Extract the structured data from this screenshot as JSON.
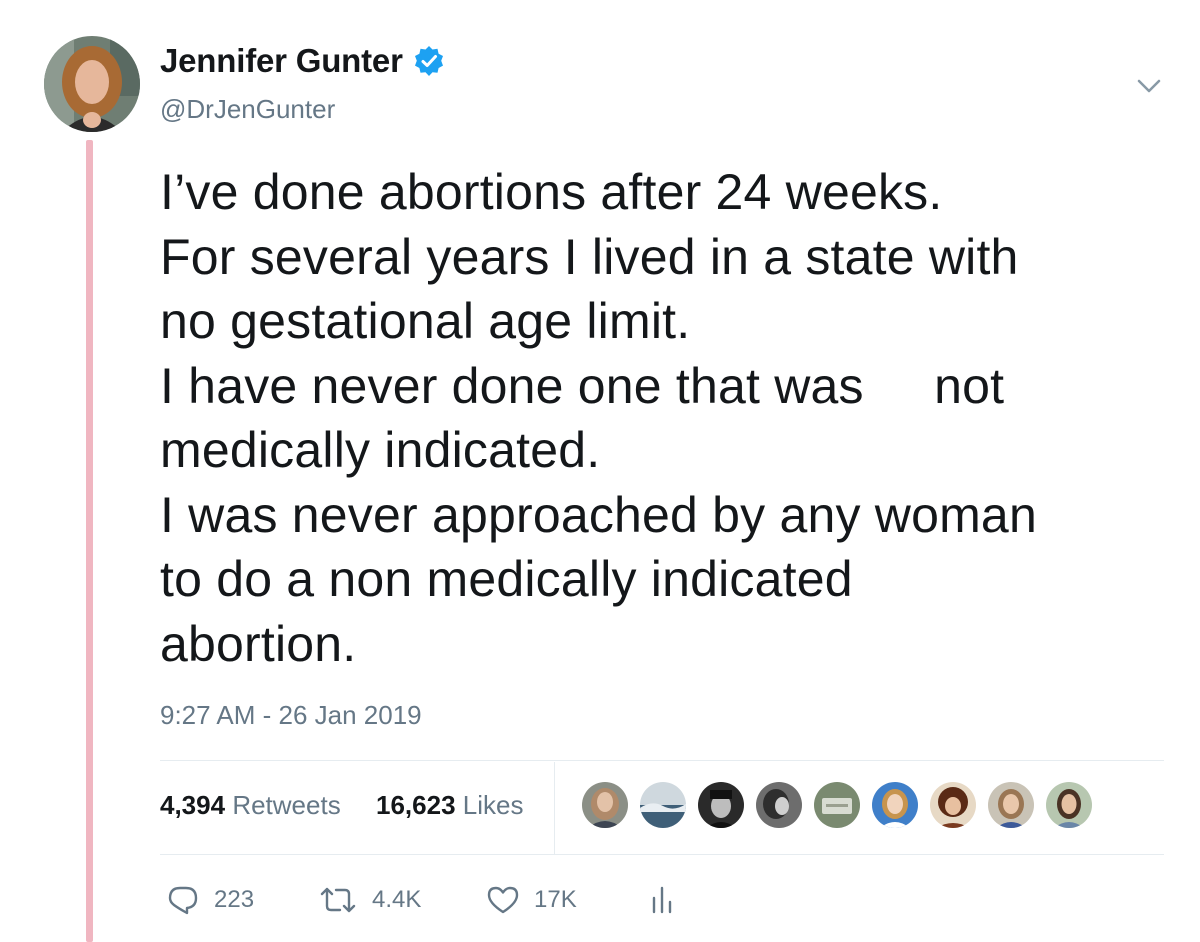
{
  "author": {
    "name": "Jennifer Gunter",
    "handle": "@DrJenGunter",
    "verified_icon": "verified-badge-icon",
    "avatar_icon": "profile-photo"
  },
  "tweet": {
    "text": "I’ve done abortions after 24 weeks.\nFor several years I lived in a state with\nno gestational age limit.\nI have never done one that was     not\nmedically indicated.\nI was never approached by any woman\nto do a non medically indicated\nabortion.",
    "timestamp": "9:27 AM - 26 Jan 2019"
  },
  "stats": {
    "retweets_count": "4,394",
    "retweets_label": "Retweets",
    "likes_count": "16,623",
    "likes_label": "Likes"
  },
  "actions": {
    "reply_count": "223",
    "retweet_count": "4.4K",
    "like_count": "17K"
  },
  "likers": [
    {
      "icon": "liker-avatar-1"
    },
    {
      "icon": "liker-avatar-2"
    },
    {
      "icon": "liker-avatar-3"
    },
    {
      "icon": "liker-avatar-4"
    },
    {
      "icon": "liker-avatar-5"
    },
    {
      "icon": "liker-avatar-6"
    },
    {
      "icon": "liker-avatar-7"
    },
    {
      "icon": "liker-avatar-8"
    },
    {
      "icon": "liker-avatar-9"
    }
  ],
  "colors": {
    "thread_line": "#f0b6c1",
    "verified_blue": "#1da1f2",
    "secondary_text": "#657786",
    "primary_text": "#14171a"
  }
}
